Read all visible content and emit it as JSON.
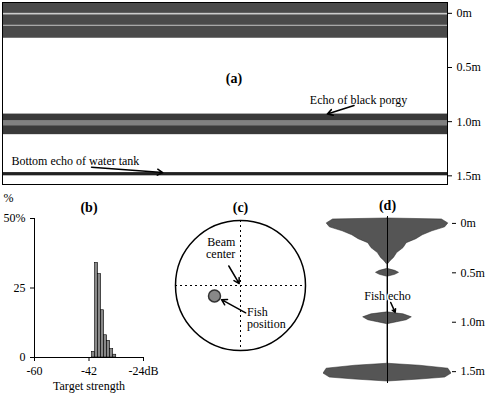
{
  "echogram": {
    "label": "(a)",
    "ylim": [
      -0.1,
      1.58
    ],
    "yticks": [
      {
        "value": 0,
        "label": "0m"
      },
      {
        "value": 0.5,
        "label": "0.5m"
      },
      {
        "value": 1,
        "label": "1.0m"
      },
      {
        "value": 1.5,
        "label": "1.5m"
      }
    ],
    "bands": [
      {
        "top": -0.1,
        "bottom": 0.23,
        "color": "#4a4a4a"
      },
      {
        "top": 0.0,
        "bottom": 0.015,
        "color": "#cccccc"
      },
      {
        "top": 0.11,
        "bottom": 0.12,
        "color": "#bbbbbb"
      },
      {
        "top": 0.93,
        "bottom": 1.12,
        "color": "#3a3a3a"
      },
      {
        "top": 0.99,
        "bottom": 1.04,
        "color": "#808080"
      },
      {
        "top": 1.47,
        "bottom": 1.5,
        "color": "#222222"
      }
    ],
    "annotations": [
      "Echo of black porgy",
      "Bottom echo of water tank"
    ]
  },
  "chart_data": {
    "type": "histogram",
    "title": "(b)",
    "bins": [
      -41,
      -40,
      -39,
      -38,
      -37,
      -36,
      -35,
      -34,
      -33
    ],
    "counts": [
      2,
      34,
      30,
      17,
      8,
      6,
      3,
      1
    ],
    "xlabel": "Target strength",
    "ylabel": "%",
    "xlim": [
      -60,
      -24
    ],
    "xticks": [
      -60,
      -42,
      {
        "value": -24,
        "label": "-24dB"
      }
    ],
    "ylim": [
      0,
      50
    ],
    "yticks": [
      0,
      25,
      {
        "value": 50,
        "label": "50%"
      }
    ],
    "color": "#888888"
  },
  "beam_diagram": {
    "label": "(c)",
    "beam_center_label": "Beam center",
    "fish_label": "Fish position",
    "fish_position": {
      "x": -0.4,
      "y": -0.16
    }
  },
  "echo_profile": {
    "label": "(d)",
    "annotation": "Fish echo",
    "ylim": [
      -0.07,
      1.62
    ],
    "yticks": [
      {
        "value": 0,
        "label": "0m"
      },
      {
        "value": 0.5,
        "label": "0.5m"
      },
      {
        "value": 1,
        "label": "1.0m"
      },
      {
        "value": 1.5,
        "label": "1.5m"
      }
    ],
    "color": "#555555",
    "profile": {
      "depth": [
        -0.05,
        -0.04,
        0,
        0.04,
        0.08,
        0.12,
        0.16,
        0.2,
        0.25,
        0.3,
        0.35,
        0.38,
        0.42,
        0.46,
        0.48,
        0.5,
        0.52,
        0.54,
        0.9,
        0.92,
        0.95,
        0.98,
        1.0,
        1.02,
        1.42,
        1.44,
        1.47,
        1.52,
        1.56,
        1.58,
        1.6
      ],
      "amplitude": [
        0,
        0.85,
        0.95,
        0.9,
        0.7,
        0.55,
        0.45,
        0.3,
        0.25,
        0.15,
        0.1,
        0.05,
        0,
        0,
        0.12,
        0.18,
        0.12,
        0,
        0,
        0.25,
        0.38,
        0.3,
        0.15,
        0,
        0,
        0.5,
        0.95,
        1.0,
        0.9,
        0.5,
        0
      ]
    }
  }
}
